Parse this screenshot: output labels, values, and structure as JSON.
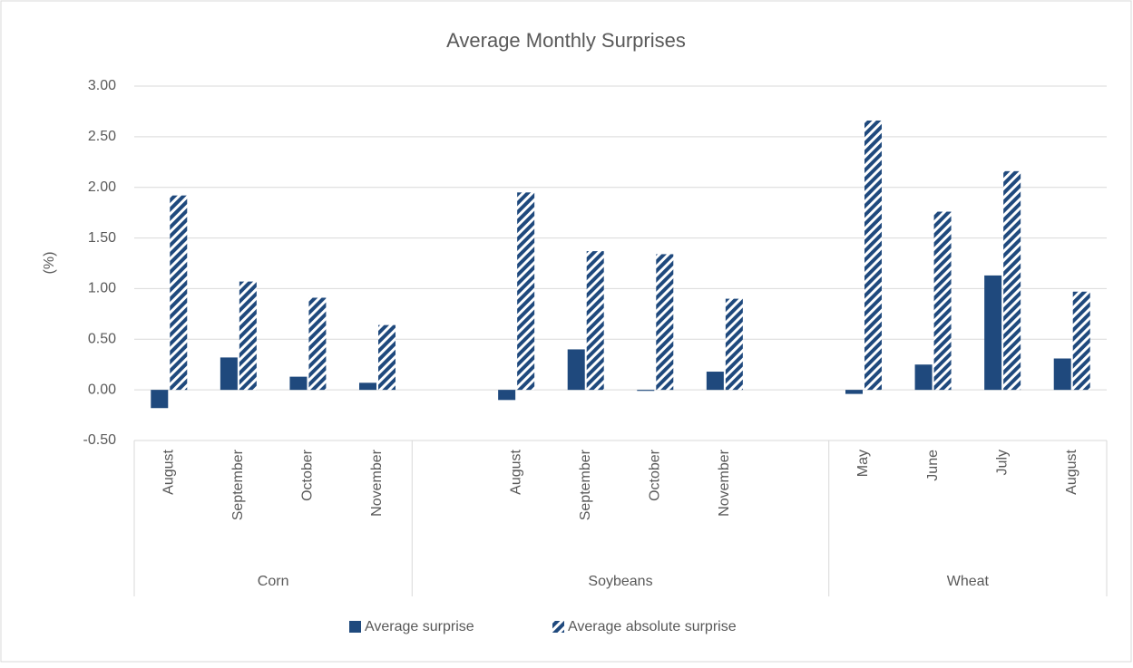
{
  "chart_data": {
    "type": "bar",
    "title": "Average Monthly Surprises",
    "y_label": "(%)",
    "groups": [
      {
        "name": "Corn",
        "categories": [
          "August",
          "September",
          "October",
          "November"
        ]
      },
      {
        "name": "Soybeans",
        "categories": [
          null,
          "August",
          "September",
          "October",
          "November",
          null
        ]
      },
      {
        "name": "Wheat",
        "categories": [
          "May",
          "June",
          "July",
          "August"
        ]
      }
    ],
    "series": [
      {
        "name": "Average surprise",
        "color": "#1f497d",
        "pattern": "solid",
        "values": [
          -0.18,
          0.32,
          0.13,
          0.07,
          null,
          -0.1,
          0.4,
          -0.01,
          0.18,
          null,
          -0.04,
          0.25,
          1.13,
          0.31
        ]
      },
      {
        "name": "Average absolute surprise",
        "color": "#1f497d",
        "pattern": "diagonal",
        "values": [
          1.92,
          1.07,
          0.91,
          0.64,
          null,
          1.95,
          1.37,
          1.34,
          0.9,
          null,
          2.66,
          1.76,
          2.16,
          0.97
        ]
      }
    ],
    "ylim": [
      -0.5,
      3.0
    ],
    "yticks": [
      {
        "value": -0.5,
        "label": "-0.50"
      },
      {
        "value": 0,
        "label": "0.00"
      },
      {
        "value": 0.5,
        "label": "0.50"
      },
      {
        "value": 1,
        "label": "1.00"
      },
      {
        "value": 1.5,
        "label": "1.50"
      },
      {
        "value": 2,
        "label": "2.00"
      },
      {
        "value": 2.5,
        "label": "2.50"
      },
      {
        "value": 3,
        "label": "3.00"
      }
    ],
    "grid": true,
    "legend": "bottom"
  }
}
